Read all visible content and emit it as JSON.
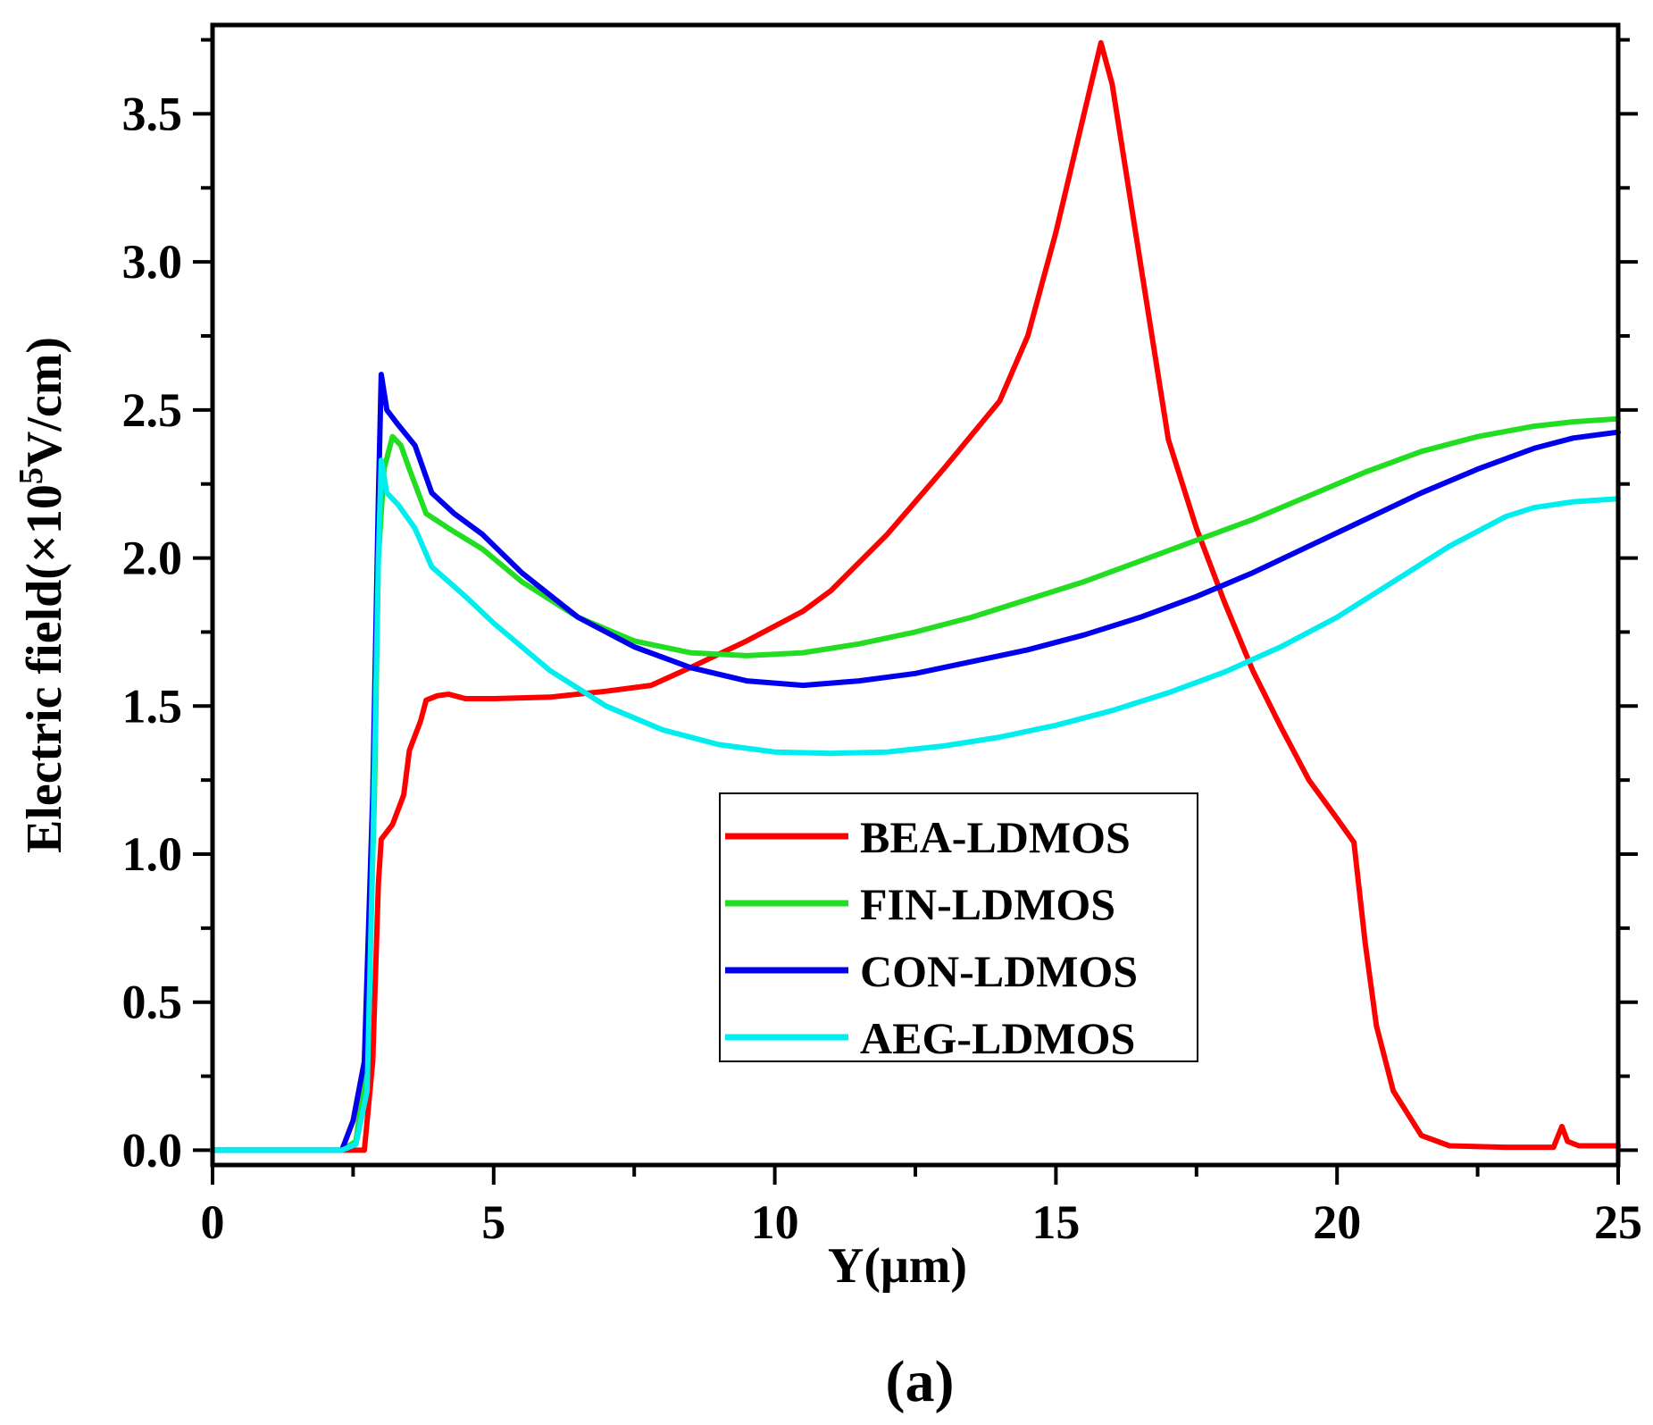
{
  "chart_data": {
    "type": "line",
    "caption": "(a)",
    "xlabel": "Y(μm)",
    "ylabel": {
      "prefix": "Electric field(×10",
      "sup": "5",
      "suffix": "V/cm)"
    },
    "xlim": [
      0,
      25
    ],
    "ylim": [
      -0.05,
      3.8
    ],
    "xticks": [
      0,
      5,
      10,
      15,
      20,
      25
    ],
    "xtick_labels": [
      "0",
      "5",
      "10",
      "15",
      "20",
      "25"
    ],
    "yticks": [
      0.0,
      0.5,
      1.0,
      1.5,
      2.0,
      2.5,
      3.0,
      3.5
    ],
    "ytick_labels": [
      "0.0",
      "0.5",
      "1.0",
      "1.5",
      "2.0",
      "2.5",
      "3.0",
      "3.5"
    ],
    "legend_position": "center-right",
    "series": [
      {
        "name": "BEA-LDMOS",
        "color": "#ff0000",
        "points": [
          [
            0,
            0
          ],
          [
            2.3,
            0
          ],
          [
            2.7,
            0
          ],
          [
            2.85,
            0.3
          ],
          [
            2.95,
            0.9
          ],
          [
            3.0,
            1.05
          ],
          [
            3.2,
            1.1
          ],
          [
            3.4,
            1.2
          ],
          [
            3.5,
            1.35
          ],
          [
            3.7,
            1.45
          ],
          [
            3.8,
            1.52
          ],
          [
            4.0,
            1.535
          ],
          [
            4.2,
            1.54
          ],
          [
            4.5,
            1.525
          ],
          [
            5.0,
            1.525
          ],
          [
            6.0,
            1.53
          ],
          [
            7.0,
            1.55
          ],
          [
            7.8,
            1.57
          ],
          [
            8.5,
            1.63
          ],
          [
            9.5,
            1.72
          ],
          [
            10.5,
            1.82
          ],
          [
            11.0,
            1.89
          ],
          [
            12.0,
            2.08
          ],
          [
            13.0,
            2.3
          ],
          [
            14.0,
            2.53
          ],
          [
            14.5,
            2.75
          ],
          [
            15.0,
            3.1
          ],
          [
            15.5,
            3.5
          ],
          [
            15.8,
            3.74
          ],
          [
            16.0,
            3.6
          ],
          [
            16.5,
            3.0
          ],
          [
            17.0,
            2.4
          ],
          [
            17.5,
            2.1
          ],
          [
            18.0,
            1.85
          ],
          [
            18.5,
            1.62
          ],
          [
            19.0,
            1.43
          ],
          [
            19.5,
            1.25
          ],
          [
            20.0,
            1.12
          ],
          [
            20.3,
            1.04
          ],
          [
            20.5,
            0.7
          ],
          [
            20.7,
            0.42
          ],
          [
            21.0,
            0.2
          ],
          [
            21.5,
            0.05
          ],
          [
            22.0,
            0.015
          ],
          [
            23.0,
            0.01
          ],
          [
            23.85,
            0.01
          ],
          [
            24.0,
            0.08
          ],
          [
            24.1,
            0.03
          ],
          [
            24.3,
            0.015
          ],
          [
            25,
            0.015
          ]
        ]
      },
      {
        "name": "FIN-LDMOS",
        "color": "#22dd22",
        "points": [
          [
            0,
            0
          ],
          [
            2.3,
            0
          ],
          [
            2.55,
            0.03
          ],
          [
            2.75,
            0.3
          ],
          [
            2.88,
            1.2
          ],
          [
            2.95,
            2.0
          ],
          [
            3.05,
            2.3
          ],
          [
            3.2,
            2.41
          ],
          [
            3.35,
            2.38
          ],
          [
            3.5,
            2.3
          ],
          [
            3.8,
            2.15
          ],
          [
            4.2,
            2.1
          ],
          [
            4.8,
            2.03
          ],
          [
            5.5,
            1.92
          ],
          [
            6.5,
            1.8
          ],
          [
            7.5,
            1.72
          ],
          [
            8.5,
            1.68
          ],
          [
            9.5,
            1.67
          ],
          [
            10.5,
            1.68
          ],
          [
            11.5,
            1.71
          ],
          [
            12.5,
            1.75
          ],
          [
            13.5,
            1.8
          ],
          [
            14.5,
            1.86
          ],
          [
            15.5,
            1.92
          ],
          [
            16.5,
            1.99
          ],
          [
            17.5,
            2.06
          ],
          [
            18.5,
            2.13
          ],
          [
            19.5,
            2.21
          ],
          [
            20.5,
            2.29
          ],
          [
            21.5,
            2.36
          ],
          [
            22.5,
            2.41
          ],
          [
            23.5,
            2.445
          ],
          [
            24.2,
            2.46
          ],
          [
            25,
            2.47
          ]
        ]
      },
      {
        "name": "CON-LDMOS",
        "color": "#0000ee",
        "points": [
          [
            0,
            0
          ],
          [
            2.3,
            0
          ],
          [
            2.5,
            0.1
          ],
          [
            2.7,
            0.3
          ],
          [
            2.85,
            1.2
          ],
          [
            2.95,
            2.2
          ],
          [
            3.0,
            2.62
          ],
          [
            3.1,
            2.5
          ],
          [
            3.3,
            2.45
          ],
          [
            3.6,
            2.38
          ],
          [
            3.9,
            2.22
          ],
          [
            4.3,
            2.15
          ],
          [
            4.8,
            2.08
          ],
          [
            5.5,
            1.95
          ],
          [
            6.5,
            1.8
          ],
          [
            7.5,
            1.7
          ],
          [
            8.5,
            1.63
          ],
          [
            9.5,
            1.585
          ],
          [
            10.5,
            1.57
          ],
          [
            11.5,
            1.585
          ],
          [
            12.5,
            1.61
          ],
          [
            13.5,
            1.65
          ],
          [
            14.5,
            1.69
          ],
          [
            15.5,
            1.74
          ],
          [
            16.5,
            1.8
          ],
          [
            17.5,
            1.87
          ],
          [
            18.5,
            1.95
          ],
          [
            19.5,
            2.04
          ],
          [
            20.5,
            2.13
          ],
          [
            21.5,
            2.22
          ],
          [
            22.5,
            2.3
          ],
          [
            23.5,
            2.37
          ],
          [
            24.2,
            2.405
          ],
          [
            25,
            2.425
          ]
        ]
      },
      {
        "name": "AEG-LDMOS",
        "color": "#00eeee",
        "points": [
          [
            0,
            0
          ],
          [
            2.3,
            0
          ],
          [
            2.55,
            0.02
          ],
          [
            2.75,
            0.2
          ],
          [
            2.85,
            1.0
          ],
          [
            2.95,
            2.0
          ],
          [
            3.0,
            2.33
          ],
          [
            3.1,
            2.22
          ],
          [
            3.3,
            2.18
          ],
          [
            3.6,
            2.1
          ],
          [
            3.9,
            1.97
          ],
          [
            4.5,
            1.87
          ],
          [
            5.0,
            1.78
          ],
          [
            6.0,
            1.62
          ],
          [
            7.0,
            1.5
          ],
          [
            8.0,
            1.42
          ],
          [
            9.0,
            1.37
          ],
          [
            10.0,
            1.345
          ],
          [
            11.0,
            1.34
          ],
          [
            12.0,
            1.345
          ],
          [
            13.0,
            1.365
          ],
          [
            14.0,
            1.395
          ],
          [
            15.0,
            1.435
          ],
          [
            16.0,
            1.485
          ],
          [
            17.0,
            1.545
          ],
          [
            18.0,
            1.615
          ],
          [
            19.0,
            1.7
          ],
          [
            20.0,
            1.8
          ],
          [
            21.0,
            1.92
          ],
          [
            22.0,
            2.04
          ],
          [
            23.0,
            2.14
          ],
          [
            23.5,
            2.17
          ],
          [
            24.2,
            2.19
          ],
          [
            25,
            2.2
          ]
        ]
      }
    ]
  }
}
